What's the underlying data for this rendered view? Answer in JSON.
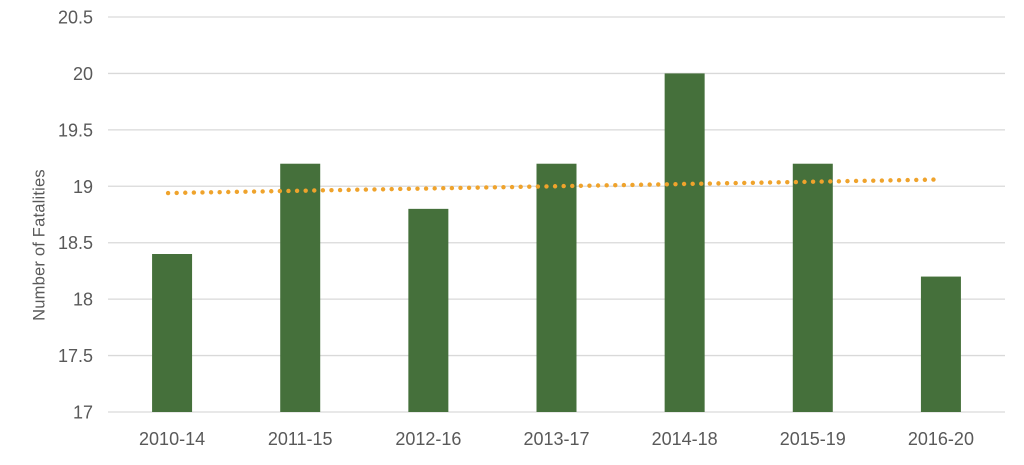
{
  "chart_data": {
    "type": "bar",
    "categories": [
      "2010-14",
      "2011-15",
      "2012-16",
      "2013-17",
      "2014-18",
      "2015-19",
      "2016-20"
    ],
    "values": [
      18.4,
      19.2,
      18.8,
      19.2,
      20,
      19.2,
      18.2
    ],
    "ylabel": "Number of Fatalities",
    "xlabel": "",
    "ylim": [
      17,
      20.5
    ],
    "ytick_step": 0.5,
    "ytick_labels": [
      "17",
      "17.5",
      "18",
      "18.5",
      "19",
      "19.5",
      "20",
      "20.5"
    ],
    "grid": true,
    "legend_position": "none",
    "trendline": {
      "type": "linear",
      "style": "dotted",
      "start_value": 18.94,
      "end_value": 19.06
    },
    "colors": {
      "bar": "#45703B",
      "trend": "#EFA32C",
      "grid": "#D9D9D9",
      "text": "#595959",
      "background": "#FFFFFF"
    }
  }
}
